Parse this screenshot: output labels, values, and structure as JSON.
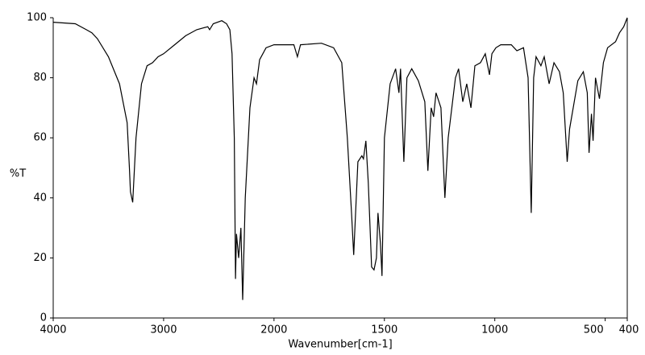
{
  "chart_data": {
    "type": "line",
    "xlabel": "Wavenumber[cm-1]",
    "ylabel": "%T",
    "xlim": [
      4000,
      400
    ],
    "ylim": [
      0,
      100
    ],
    "xscale_break": 2000,
    "xscale_break_factor": 2,
    "xticks": [
      4000,
      3000,
      2000,
      1500,
      1000,
      500,
      400
    ],
    "yticks": [
      0,
      20,
      40,
      60,
      80,
      100
    ],
    "color": "#000000",
    "x": [
      4000,
      3800,
      3700,
      3650,
      3600,
      3500,
      3400,
      3330,
      3310,
      3300,
      3280,
      3250,
      3200,
      3150,
      3100,
      3050,
      3000,
      2900,
      2800,
      2700,
      2600,
      2583,
      2550,
      2473,
      2430,
      2400,
      2380,
      2360,
      2349,
      2340,
      2335,
      2320,
      2300,
      2284,
      2260,
      2218,
      2181,
      2159,
      2130,
      2072,
      2000,
      1910,
      1894,
      1880,
      1785,
      1730,
      1693,
      1668,
      1649,
      1639,
      1620,
      1602,
      1595,
      1584,
      1573,
      1558,
      1547,
      1536,
      1529,
      1518,
      1511,
      1500,
      1474,
      1449,
      1434,
      1427,
      1412,
      1398,
      1376,
      1346,
      1317,
      1303,
      1288,
      1277,
      1266,
      1244,
      1226,
      1211,
      1178,
      1164,
      1145,
      1127,
      1108,
      1090,
      1065,
      1043,
      1024,
      1013,
      995,
      973,
      925,
      900,
      870,
      849,
      835,
      824,
      813,
      791,
      776,
      754,
      732,
      707,
      690,
      672,
      661,
      624,
      599,
      581,
      573,
      562,
      555,
      544,
      526,
      508,
      489,
      453,
      435,
      416,
      400
    ],
    "values": [
      98.5,
      98,
      96,
      95,
      93,
      87,
      78,
      65,
      50,
      42,
      38.5,
      60,
      78,
      84,
      85,
      87,
      88,
      91,
      94,
      96,
      97,
      96,
      98,
      99,
      98,
      96,
      88,
      60,
      13,
      28,
      26,
      20,
      30,
      6,
      40,
      70,
      80,
      78,
      86,
      90,
      91,
      91,
      87,
      91,
      91.5,
      90,
      85,
      60,
      35,
      21,
      52,
      54,
      53,
      59,
      45,
      17,
      16,
      20,
      35,
      25,
      14,
      60,
      78,
      83,
      75,
      83,
      52,
      80,
      83,
      79,
      72,
      49,
      70,
      67,
      75,
      70,
      40,
      60,
      80,
      83,
      72,
      78,
      70,
      84,
      85,
      88,
      81,
      88,
      90,
      91,
      91,
      89,
      90,
      80,
      35,
      80,
      87,
      84,
      87,
      78,
      85,
      82,
      75,
      52,
      63,
      79,
      82,
      75,
      55,
      68,
      59,
      80,
      73,
      85,
      90,
      92,
      95,
      97,
      100
    ]
  }
}
